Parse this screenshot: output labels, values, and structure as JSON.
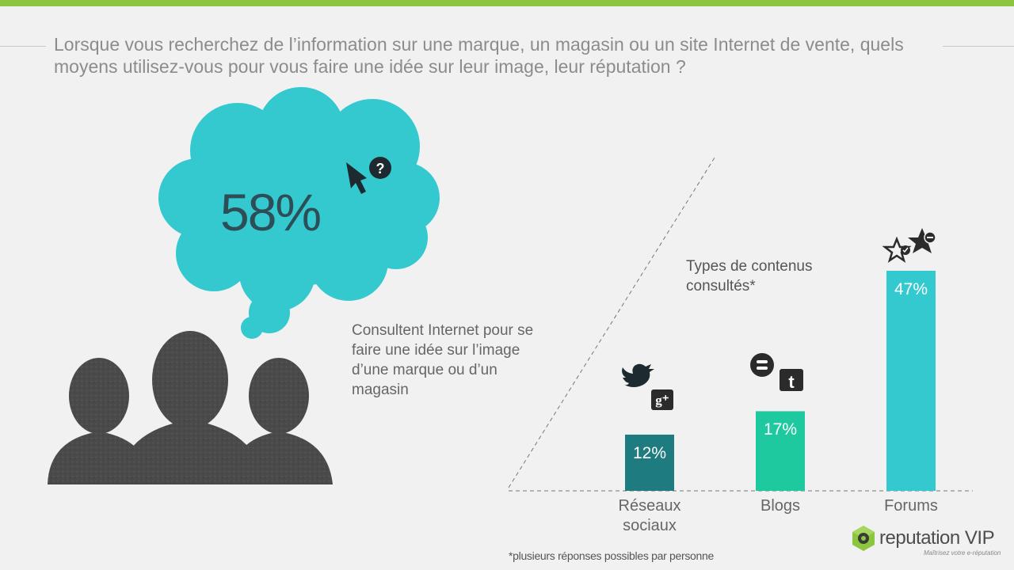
{
  "title": "Lorsque vous recherchez de l’information sur une marque, un magasin ou un site Internet de vente, quels moyens utilisez-vous pour vous faire une idée sur leur image, leur réputation ?",
  "highlight": {
    "value": "58%",
    "description": "Consultent Internet pour se faire une idée sur l’image d’une marque ou d’un magasin"
  },
  "chart_data": {
    "type": "bar",
    "title": "Types de contenus consultés*",
    "categories": [
      "Réseaux sociaux",
      "Blogs",
      "Forums"
    ],
    "values": [
      12,
      17,
      47
    ],
    "value_labels": [
      "12%",
      "17%",
      "47%"
    ],
    "colors": [
      "#1e7b80",
      "#1fc9a0",
      "#33c9cf"
    ],
    "icons": [
      [
        "twitter-icon",
        "google-plus-icon"
      ],
      [
        "blogger-icon",
        "tumblr-icon"
      ],
      [
        "star-check-icon",
        "star-minus-icon"
      ]
    ],
    "ylim": [
      0,
      50
    ],
    "grid": false
  },
  "footnote": "*plusieurs réponses possibles par personne",
  "logo": {
    "name": "reputation VIP",
    "tagline": "Maîtrisez votre e-réputation"
  },
  "colors": {
    "accent_bar": "#8cc63f",
    "cloud": "#33c9cf",
    "silhouette": "#4a4a4a"
  }
}
